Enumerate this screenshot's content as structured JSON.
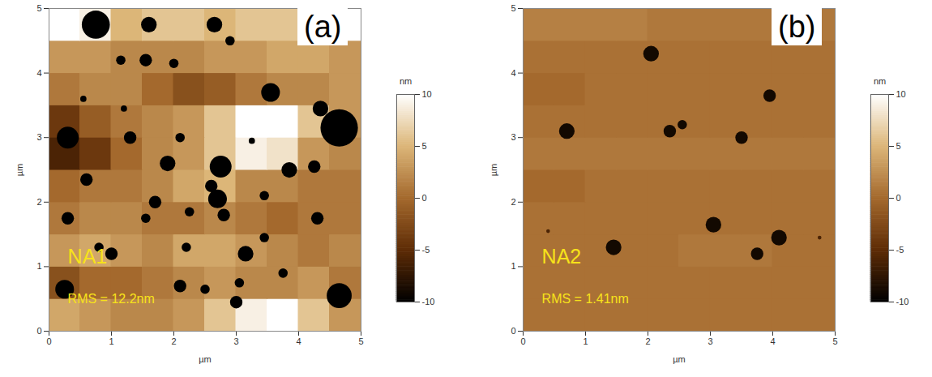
{
  "chart_data": [
    {
      "type": "heatmap",
      "title": "(a)",
      "annotations": [
        "NA1",
        "RMS = 12.2nm"
      ],
      "x_label": "µm",
      "y_label": "µm",
      "xlim": [
        0,
        5
      ],
      "ylim": [
        0,
        5
      ],
      "xticks": [
        0,
        1,
        2,
        3,
        4,
        5
      ],
      "yticks": [
        0,
        1,
        2,
        3,
        4,
        5
      ],
      "x": [
        0.25,
        0.75,
        1.25,
        1.75,
        2.25,
        2.75,
        3.25,
        3.75,
        4.25,
        4.75
      ],
      "y": [
        0.25,
        0.75,
        1.25,
        1.75,
        2.25,
        2.75,
        3.25,
        3.75,
        4.25,
        4.75
      ],
      "values": [
        [
          4,
          3,
          2,
          2,
          3,
          6,
          9,
          10,
          6,
          3
        ],
        [
          -2,
          0,
          0,
          1,
          2,
          3,
          2,
          2,
          3,
          1
        ],
        [
          3,
          4,
          3,
          2,
          4,
          4,
          3,
          2,
          1,
          2
        ],
        [
          1,
          2,
          2,
          1,
          1,
          2,
          1,
          0,
          1,
          1
        ],
        [
          0,
          1,
          1,
          2,
          4,
          5,
          2,
          2,
          1,
          1
        ],
        [
          -6,
          -4,
          0,
          2,
          3,
          6,
          9,
          8,
          3,
          2
        ],
        [
          -4,
          -1,
          1,
          2,
          3,
          6,
          10,
          10,
          6,
          3
        ],
        [
          1,
          2,
          2,
          0,
          -2,
          -1,
          1,
          2,
          2,
          3
        ],
        [
          3,
          3,
          2,
          2,
          2,
          3,
          3,
          4,
          4,
          3
        ],
        [
          10,
          9,
          5,
          6,
          6,
          5,
          6,
          6,
          9,
          10
        ]
      ],
      "pits": {
        "x": [
          0.75,
          1.6,
          2.65,
          1.15,
          1.55,
          2.0,
          2.9,
          3.55,
          0.55,
          1.2,
          4.65,
          4.35,
          0.3,
          1.3,
          2.1,
          3.25,
          1.9,
          2.75,
          2.6,
          0.6,
          3.85,
          4.25,
          3.45,
          1.7,
          2.7,
          2.8,
          0.3,
          1.55,
          2.25,
          3.45,
          4.3,
          0.8,
          1.0,
          2.2,
          3.15,
          3.75,
          2.5,
          0.25,
          2.1,
          3.05,
          3.0,
          4.65
        ],
        "y": [
          4.75,
          4.75,
          4.75,
          4.2,
          4.2,
          4.15,
          4.5,
          3.7,
          3.6,
          3.45,
          3.15,
          3.45,
          3.0,
          3.0,
          3.0,
          2.95,
          2.6,
          2.55,
          2.25,
          2.35,
          2.5,
          2.55,
          2.1,
          2.0,
          2.05,
          1.8,
          1.75,
          1.75,
          1.85,
          1.45,
          1.75,
          1.3,
          1.2,
          1.3,
          1.2,
          0.9,
          0.65,
          0.65,
          0.7,
          0.75,
          0.45,
          0.55
        ],
        "diameter": [
          0.45,
          0.25,
          0.25,
          0.15,
          0.2,
          0.15,
          0.15,
          0.3,
          0.1,
          0.1,
          0.6,
          0.25,
          0.35,
          0.2,
          0.15,
          0.1,
          0.25,
          0.35,
          0.2,
          0.2,
          0.25,
          0.2,
          0.15,
          0.2,
          0.3,
          0.2,
          0.2,
          0.15,
          0.15,
          0.15,
          0.2,
          0.15,
          0.2,
          0.15,
          0.25,
          0.15,
          0.15,
          0.3,
          0.2,
          0.15,
          0.2,
          0.4
        ],
        "values": [
          -10,
          -10,
          -10,
          -10,
          -10,
          -10,
          -10,
          -10,
          -10,
          -10,
          -10,
          -10,
          -10,
          -10,
          -10,
          -10,
          -10,
          -10,
          -10,
          -10,
          -10,
          -10,
          -10,
          -10,
          -10,
          -10,
          -10,
          -10,
          -10,
          -10,
          -10,
          -10,
          -10,
          -10,
          -10,
          -10,
          -10,
          -10,
          -10,
          -10,
          -10,
          -10
        ]
      },
      "colorbar": {
        "label": "nm",
        "range": [
          -10,
          10
        ],
        "ticks": [
          -10,
          -5,
          0,
          5,
          10
        ]
      }
    },
    {
      "type": "heatmap",
      "title": "(b)",
      "annotations": [
        "NA2",
        "RMS = 1.41nm"
      ],
      "x_label": "µm",
      "y_label": "µm",
      "xlim": [
        0,
        5
      ],
      "ylim": [
        0,
        5
      ],
      "xticks": [
        0,
        1,
        2,
        3,
        4,
        5
      ],
      "yticks": [
        0,
        1,
        2,
        3,
        4,
        5
      ],
      "x": [
        0.25,
        0.75,
        1.25,
        1.75,
        2.25,
        2.75,
        3.25,
        3.75,
        4.25,
        4.75
      ],
      "y": [
        0.25,
        0.75,
        1.25,
        1.75,
        2.25,
        2.75,
        3.25,
        3.75,
        4.25,
        4.75
      ],
      "values": [
        [
          0.5,
          0.5,
          0.5,
          0.5,
          0.5,
          0.5,
          0.5,
          0.5,
          0.5,
          0.5
        ],
        [
          0.5,
          0.5,
          0.5,
          0.5,
          0.5,
          0.5,
          0.5,
          0.5,
          0.5,
          0.5
        ],
        [
          0.5,
          0.5,
          0.5,
          0.5,
          0.5,
          1,
          1,
          1,
          0.5,
          0.5
        ],
        [
          0.5,
          0.5,
          0.5,
          0.5,
          0.5,
          0.5,
          0.5,
          0.5,
          0.5,
          0.5
        ],
        [
          0,
          0,
          0.5,
          0.5,
          0.5,
          0.5,
          0.5,
          0.5,
          0.5,
          0.5
        ],
        [
          1,
          1,
          1,
          1,
          1,
          1,
          1,
          1,
          1,
          1
        ],
        [
          0.5,
          0.5,
          0.5,
          0.5,
          0.5,
          0.5,
          0.5,
          0.5,
          0.5,
          0.5
        ],
        [
          0,
          0,
          0.5,
          0.5,
          0.5,
          0.5,
          0.5,
          0.5,
          0.5,
          0.5
        ],
        [
          0.5,
          0.5,
          0.5,
          0.5,
          0.5,
          0.5,
          0.5,
          0.5,
          0.5,
          0.5
        ],
        [
          1.5,
          1.5,
          1.5,
          1.5,
          1,
          1,
          1,
          1,
          1,
          1
        ]
      ],
      "pits": {
        "x": [
          2.05,
          3.95,
          0.7,
          2.35,
          2.55,
          3.5,
          3.05,
          1.45,
          3.75,
          4.1,
          0.4,
          4.75
        ],
        "y": [
          4.3,
          3.65,
          3.1,
          3.1,
          3.2,
          3.0,
          1.65,
          1.3,
          1.2,
          1.45,
          1.55,
          1.45
        ],
        "diameter": [
          0.25,
          0.2,
          0.25,
          0.2,
          0.15,
          0.2,
          0.25,
          0.25,
          0.2,
          0.25,
          0.06,
          0.06
        ],
        "values": [
          -9,
          -9,
          -9,
          -9,
          -9,
          -9,
          -9,
          -9,
          -9,
          -9,
          -6,
          -6
        ]
      },
      "colorbar": {
        "label": "nm",
        "range": [
          -10,
          10
        ],
        "ticks": [
          -10,
          -5,
          0,
          5,
          10
        ]
      }
    }
  ]
}
